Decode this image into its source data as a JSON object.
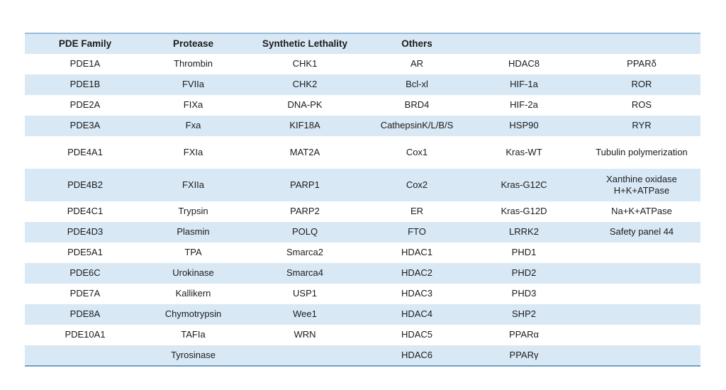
{
  "table": {
    "headers": [
      "PDE Family",
      "Protease",
      "Synthetic Lethality",
      "Others",
      "",
      ""
    ],
    "rows": [
      [
        "PDE1A",
        "Thrombin",
        "CHK1",
        "AR",
        "HDAC8",
        "PPARδ"
      ],
      [
        "PDE1B",
        "FVIIa",
        "CHK2",
        "Bcl-xl",
        "HIF-1a",
        "ROR"
      ],
      [
        "PDE2A",
        "FIXa",
        "DNA-PK",
        "BRD4",
        "HIF-2a",
        "ROS"
      ],
      [
        "PDE3A",
        "Fxa",
        "KIF18A",
        "CathepsinK/L/B/S",
        "HSP90",
        "RYR"
      ],
      [
        "PDE4A1",
        "FXIa",
        "MAT2A",
        "Cox1",
        "Kras-WT",
        "Tubulin polymerization"
      ],
      [
        "PDE4B2",
        "FXIIa",
        "PARP1",
        "Cox2",
        "Kras-G12C",
        "Xanthine oxidase\nH+K+ATPase"
      ],
      [
        "PDE4C1",
        "Trypsin",
        "PARP2",
        "ER",
        "Kras-G12D",
        "Na+K+ATPase"
      ],
      [
        "PDE4D3",
        "Plasmin",
        "POLQ",
        "FTO",
        "LRRK2",
        "Safety panel 44"
      ],
      [
        "PDE5A1",
        "TPA",
        "Smarca2",
        "HDAC1",
        "PHD1",
        ""
      ],
      [
        "PDE6C",
        "Urokinase",
        "Smarca4",
        "HDAC2",
        "PHD2",
        ""
      ],
      [
        "PDE7A",
        "Kallikern",
        "USP1",
        "HDAC3",
        "PHD3",
        ""
      ],
      [
        "PDE8A",
        "Chymotrypsin",
        "Wee1",
        "HDAC4",
        "SHP2",
        ""
      ],
      [
        "PDE10A1",
        "TAFIa",
        "WRN",
        "HDAC5",
        "PPARα",
        ""
      ],
      [
        "",
        "Tyrosinase",
        "",
        "HDAC6",
        "PPARγ",
        ""
      ]
    ],
    "colors": {
      "stripe_blue": "#d8e8f5",
      "top_border": "#97bed8",
      "bottom_border": "#6fa0c4",
      "text": "#1c1c1c"
    }
  }
}
